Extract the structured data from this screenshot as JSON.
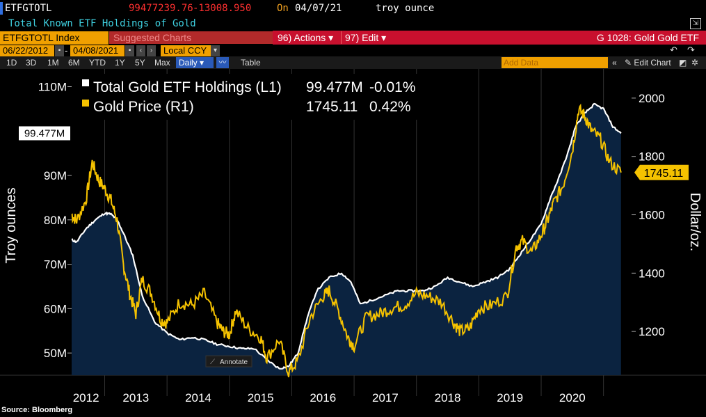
{
  "header": {
    "ticker": "ETFGTOTL",
    "last_price": "99477239.76",
    "change": "-13008.950",
    "on_label": "On",
    "date": "04/07/21",
    "unit": "troy ounce",
    "description": "Total Known ETF Holdings of Gold"
  },
  "toolbar": {
    "security": "ETFGTOTL Index",
    "suggested": "Suggested Charts",
    "actions": "96) Actions",
    "edit": "97) Edit",
    "chart_title": "G 1028: Gold Gold ETF",
    "start_date": "06/22/2012",
    "end_date": "04/08/2021",
    "currency": "Local CCY",
    "periods": [
      "1D",
      "3D",
      "1M",
      "6M",
      "YTD",
      "1Y",
      "5Y",
      "Max"
    ],
    "frequency": "Daily",
    "table": "Table",
    "add_data": "Add Data",
    "edit_chart": "Edit Chart",
    "annotate": "Annotate"
  },
  "colors": {
    "holdings": "#ffffff",
    "gold": "#f5c200",
    "area": "#0b2340",
    "background": "#000000"
  },
  "chart_data": {
    "type": "line",
    "legend": [
      {
        "label": "Total Gold ETF Holdings (L1)",
        "value": "99.477M",
        "change": "-0.01%"
      },
      {
        "label": "Gold Price (R1)",
        "value": "1745.11",
        "change": "0.42%"
      }
    ],
    "ylabel_left": "Troy ounces",
    "ylabel_right": "Dollar/oz.",
    "ylim_left": [
      45,
      114
    ],
    "ylim_right": [
      1050,
      2100
    ],
    "left_ticks": [
      "50M",
      "60M",
      "70M",
      "80M",
      "90M",
      "110M"
    ],
    "left_tick_values": [
      50,
      60,
      70,
      80,
      90,
      110
    ],
    "right_ticks": [
      "1200",
      "1400",
      "1600",
      "1800",
      "2000"
    ],
    "right_tick_values": [
      1200,
      1400,
      1600,
      1800,
      2000
    ],
    "x_labels": [
      "2012",
      "2013",
      "2014",
      "2015",
      "2016",
      "2017",
      "2018",
      "2019",
      "2020"
    ],
    "x_label_positions": [
      2012.7,
      2013.5,
      2014.5,
      2015.5,
      2016.5,
      2017.5,
      2018.5,
      2019.5,
      2020.5
    ],
    "year_dividers": [
      2013,
      2014,
      2015,
      2016,
      2017,
      2018,
      2019,
      2020,
      2021
    ],
    "xlim": [
      2012.47,
      2021.45
    ],
    "last_label_left": "99.477M",
    "last_label_right": "1745.11",
    "series": [
      {
        "name": "Total Gold ETF Holdings",
        "axis": "left",
        "x": [
          2012.47,
          2012.55,
          2012.7,
          2012.85,
          2013.0,
          2013.1,
          2013.2,
          2013.3,
          2013.45,
          2013.6,
          2013.8,
          2014.0,
          2014.2,
          2014.4,
          2014.6,
          2014.8,
          2015.0,
          2015.2,
          2015.4,
          2015.6,
          2015.8,
          2015.95,
          2016.1,
          2016.25,
          2016.4,
          2016.6,
          2016.8,
          2016.95,
          2017.1,
          2017.3,
          2017.5,
          2017.7,
          2017.9,
          2018.1,
          2018.3,
          2018.5,
          2018.7,
          2018.9,
          2019.1,
          2019.3,
          2019.5,
          2019.65,
          2019.8,
          2020.0,
          2020.15,
          2020.3,
          2020.45,
          2020.55,
          2020.7,
          2020.85,
          2021.0,
          2021.15,
          2021.28
        ],
        "y": [
          75.5,
          75,
          78,
          80,
          81.5,
          81.3,
          80,
          77,
          72,
          63,
          57,
          54.5,
          53,
          53.5,
          53,
          52,
          51.5,
          51,
          51,
          48.5,
          46.5,
          47,
          50,
          58,
          64,
          67,
          68,
          66,
          61,
          62,
          63,
          64,
          64,
          64,
          65,
          67,
          66,
          65,
          66,
          67,
          69,
          72,
          75,
          79,
          85,
          90,
          96,
          101,
          104,
          106,
          105,
          101,
          99.5
        ]
      },
      {
        "name": "Gold Price",
        "axis": "right",
        "x": [
          2012.47,
          2012.55,
          2012.7,
          2012.8,
          2012.9,
          2013.0,
          2013.1,
          2013.2,
          2013.3,
          2013.4,
          2013.5,
          2013.6,
          2013.75,
          2013.9,
          2014.0,
          2014.2,
          2014.4,
          2014.6,
          2014.8,
          2014.9,
          2015.0,
          2015.1,
          2015.3,
          2015.5,
          2015.6,
          2015.8,
          2015.95,
          2016.1,
          2016.3,
          2016.5,
          2016.6,
          2016.75,
          2016.9,
          2017.0,
          2017.2,
          2017.4,
          2017.6,
          2017.8,
          2018.0,
          2018.2,
          2018.4,
          2018.6,
          2018.7,
          2018.85,
          2019.0,
          2019.2,
          2019.45,
          2019.6,
          2019.7,
          2019.85,
          2020.0,
          2020.1,
          2020.2,
          2020.35,
          2020.5,
          2020.6,
          2020.7,
          2020.8,
          2020.95,
          2021.1,
          2021.28
        ],
        "y": [
          1600,
          1580,
          1650,
          1780,
          1720,
          1690,
          1650,
          1580,
          1430,
          1330,
          1260,
          1380,
          1330,
          1240,
          1230,
          1300,
          1290,
          1330,
          1230,
          1200,
          1190,
          1270,
          1210,
          1180,
          1110,
          1170,
          1060,
          1100,
          1250,
          1320,
          1340,
          1270,
          1180,
          1150,
          1250,
          1260,
          1280,
          1290,
          1330,
          1320,
          1300,
          1230,
          1200,
          1210,
          1280,
          1290,
          1320,
          1490,
          1510,
          1470,
          1530,
          1580,
          1640,
          1700,
          1820,
          1960,
          1940,
          1890,
          1860,
          1780,
          1745
        ]
      }
    ]
  },
  "footer": {
    "source": "Source: Bloomberg"
  }
}
